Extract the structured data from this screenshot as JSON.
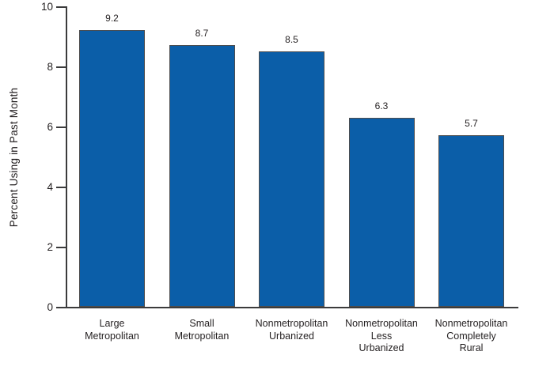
{
  "chart_data": {
    "type": "bar",
    "title": "",
    "xlabel": "",
    "ylabel": "Percent Using in Past Month",
    "categories": [
      [
        "Large",
        "Metropolitan"
      ],
      [
        "Small",
        "Metropolitan"
      ],
      [
        "Nonmetropolitan",
        "Urbanized"
      ],
      [
        "Nonmetropolitan",
        "Less",
        "Urbanized"
      ],
      [
        "Nonmetropolitan",
        "Completely",
        "Rural"
      ]
    ],
    "values": [
      9.2,
      8.7,
      8.5,
      6.3,
      5.7
    ],
    "value_labels": [
      "9.2",
      "8.7",
      "8.5",
      "6.3",
      "5.7"
    ],
    "ylim": [
      0,
      10
    ],
    "yticks": [
      0,
      2,
      4,
      6,
      8,
      10
    ],
    "ytick_labels": [
      "0",
      "2",
      "4",
      "6",
      "8",
      "10"
    ],
    "grid": false,
    "legend": false,
    "colors": {
      "bar_fill": "#0b5ea8",
      "bar_border": "#4d4d4e",
      "axis": "#3b3b3c",
      "text": "#231f20",
      "background": "#ffffff"
    }
  }
}
